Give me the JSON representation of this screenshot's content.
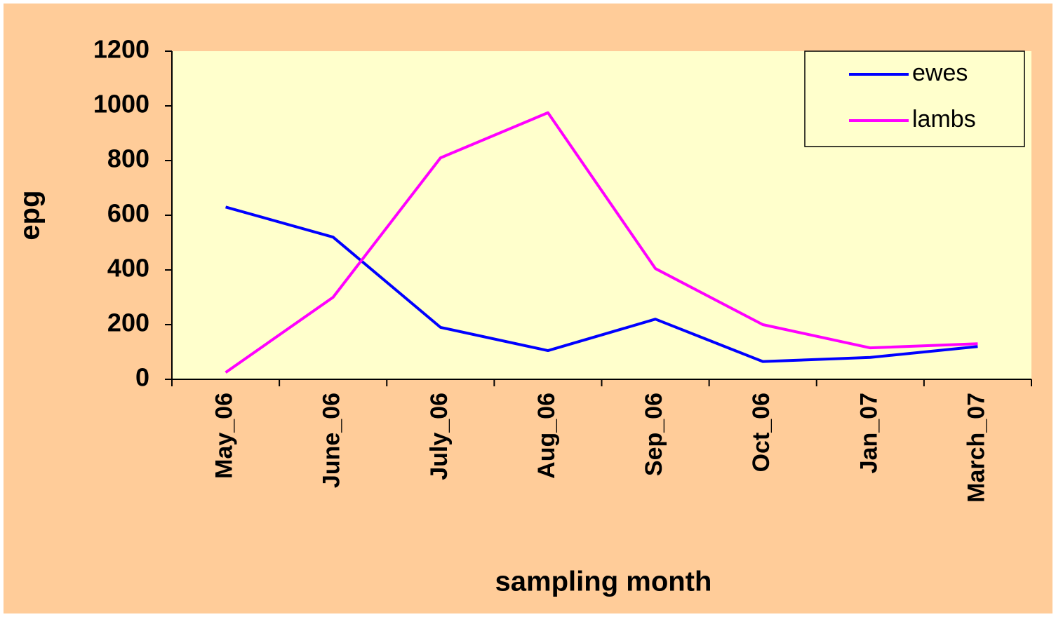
{
  "chart_data": {
    "type": "line",
    "xlabel": "sampling month",
    "ylabel": "epg",
    "categories": [
      "May_06",
      "June_06",
      "July_06",
      "Aug_06",
      "Sep_06",
      "Oct_06",
      "Jan_07",
      "March_07"
    ],
    "series": [
      {
        "name": "ewes",
        "color": "#0000ff",
        "values": [
          630,
          520,
          190,
          105,
          220,
          65,
          80,
          120
        ]
      },
      {
        "name": "lambs",
        "color": "#ff00ff",
        "values": [
          25,
          300,
          810,
          975,
          405,
          200,
          115,
          130
        ]
      }
    ],
    "ylim": [
      0,
      1200
    ],
    "yticks": [
      0,
      200,
      400,
      600,
      800,
      1000,
      1200
    ],
    "grid": false,
    "legend": "upper right"
  }
}
